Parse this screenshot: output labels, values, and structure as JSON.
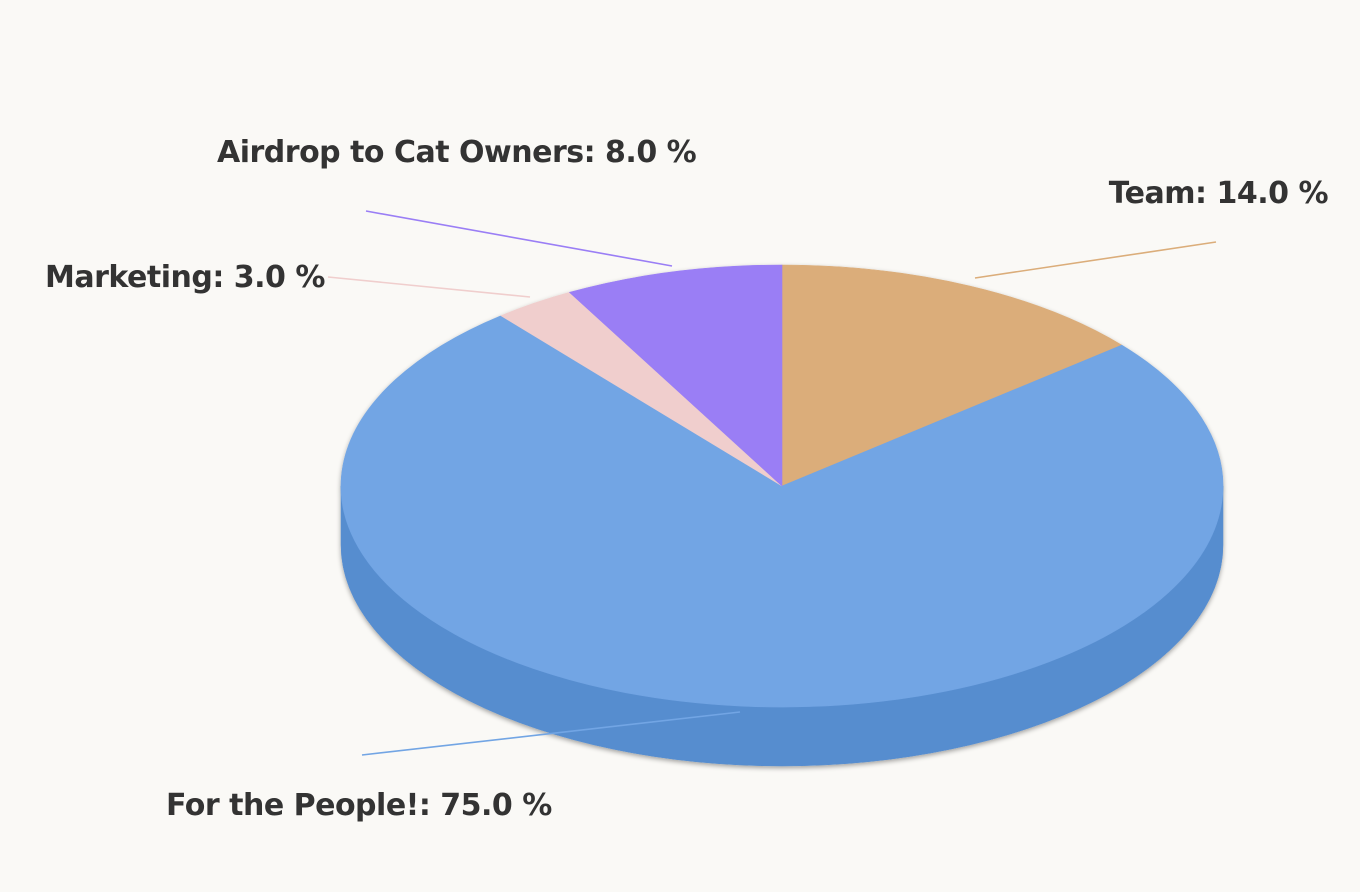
{
  "chart_data": {
    "type": "pie",
    "style": "3d",
    "start_angle_deg": 90,
    "direction": "clockwise",
    "slices": [
      {
        "label": "Team",
        "value": 14.0,
        "display": "Team: 14.0 %",
        "color": "#dbad7a",
        "side_color": "#c8975f",
        "label_side": "right"
      },
      {
        "label": "For the People!",
        "value": 75.0,
        "display": "For the People!: 75.0 %",
        "color": "#72a5e4",
        "side_color": "#578dcf",
        "label_side": "left"
      },
      {
        "label": "Marketing",
        "value": 3.0,
        "display": "Marketing: 3.0 %",
        "color": "#f0cecd",
        "side_color": "#dcb3b2",
        "label_side": "left"
      },
      {
        "label": "Airdrop to Cat Owners",
        "value": 8.0,
        "display": "Airdrop to Cat Owners: 8.0 %",
        "color": "#9a7ef5",
        "side_color": "#7f63dc",
        "label_side": "left"
      }
    ]
  },
  "colors": {
    "background": "#faf9f6",
    "label_text": "#333333"
  }
}
